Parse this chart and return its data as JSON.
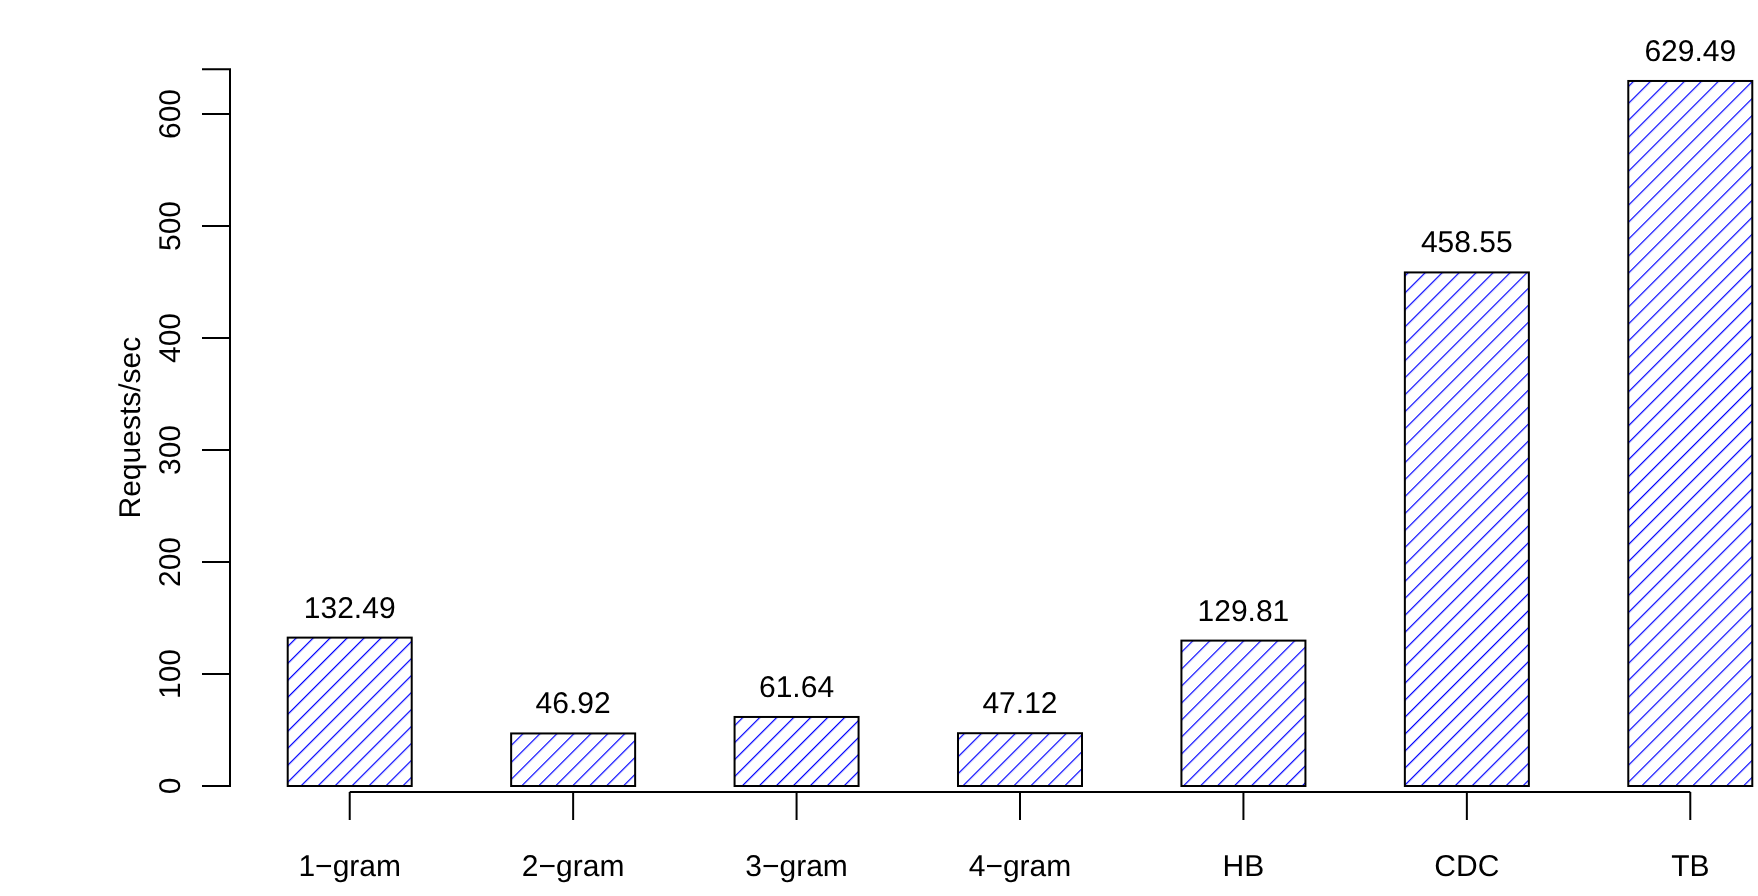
{
  "chart_data": {
    "type": "bar",
    "ylabel": "Requests/sec",
    "categories": [
      "1−gram",
      "2−gram",
      "3−gram",
      "4−gram",
      "HB",
      "CDC",
      "TB"
    ],
    "values": [
      132.49,
      46.92,
      61.64,
      47.12,
      129.81,
      458.55,
      629.49
    ],
    "color": "#0000ff",
    "data_labels": true,
    "ylim": [
      0,
      640
    ],
    "yticks": [
      0,
      100,
      200,
      300,
      400,
      500,
      600
    ]
  }
}
